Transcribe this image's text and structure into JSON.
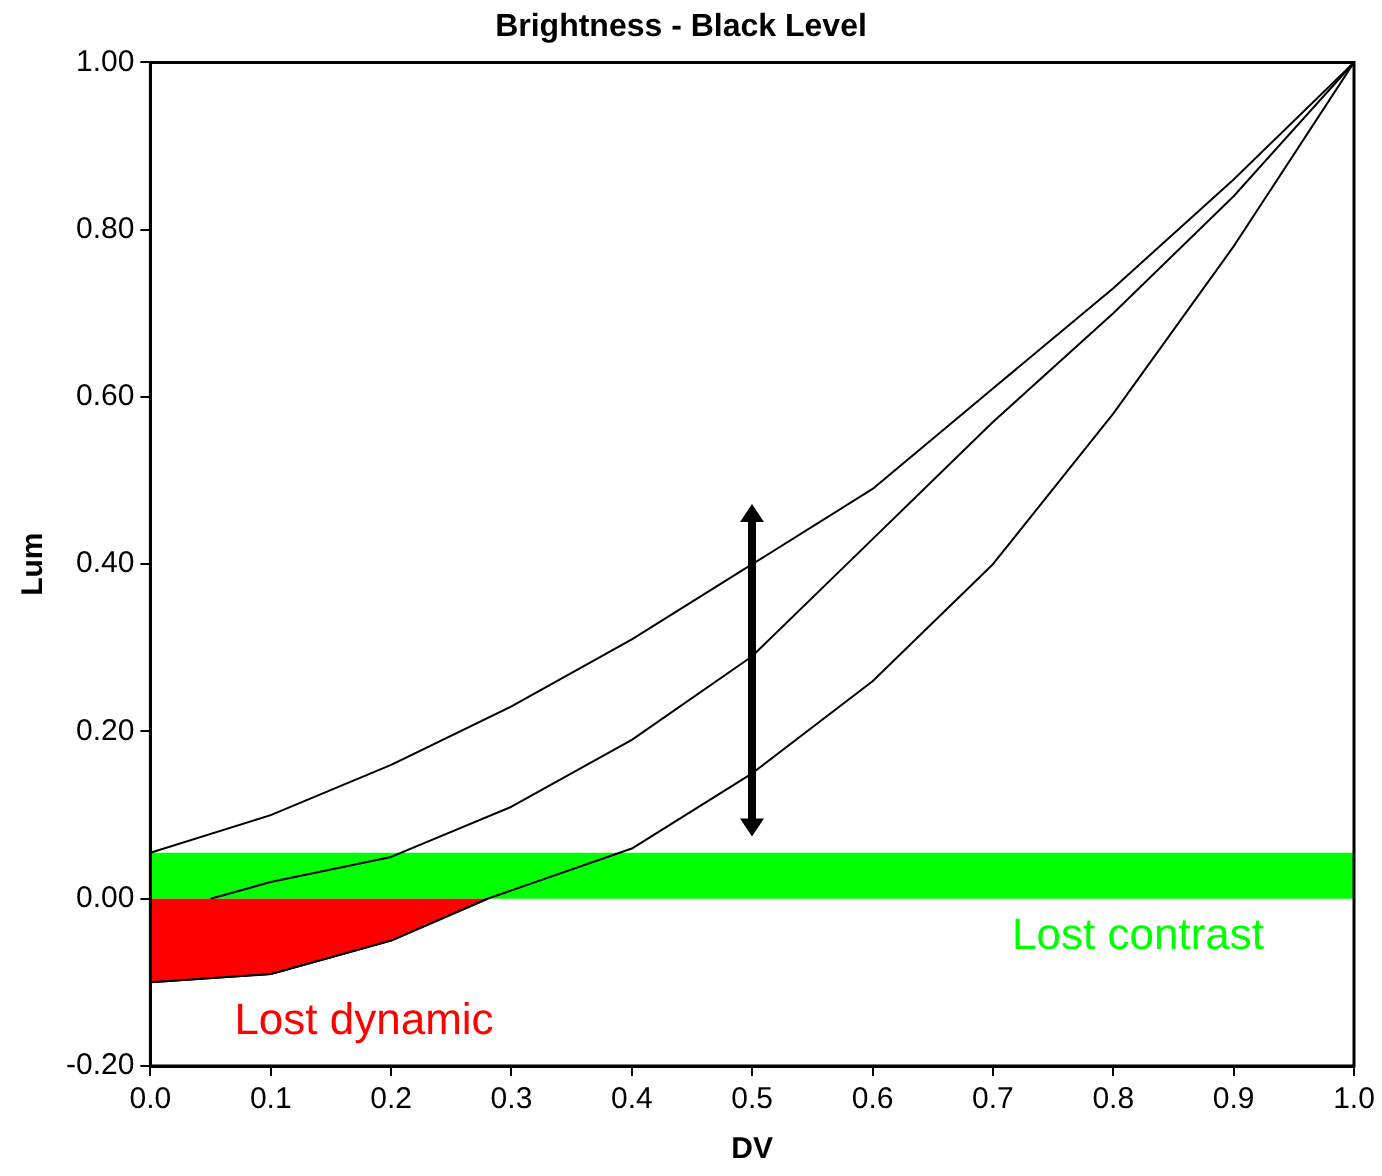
{
  "chart_data": {
    "type": "line",
    "title": "Brightness - Black Level",
    "xlabel": "DV",
    "ylabel": "Lum",
    "xlim": [
      0,
      1
    ],
    "ylim": [
      -0.2,
      1
    ],
    "xticks": [
      {
        "value": 0,
        "label": "0.0"
      },
      {
        "value": 0.1,
        "label": "0.1"
      },
      {
        "value": 0.2,
        "label": "0.2"
      },
      {
        "value": 0.3,
        "label": "0.3"
      },
      {
        "value": 0.4,
        "label": "0.4"
      },
      {
        "value": 0.5,
        "label": "0.5"
      },
      {
        "value": 0.6,
        "label": "0.6"
      },
      {
        "value": 0.7,
        "label": "0.7"
      },
      {
        "value": 0.8,
        "label": "0.8"
      },
      {
        "value": 0.9,
        "label": "0.9"
      },
      {
        "value": 1,
        "label": "1.0"
      }
    ],
    "yticks": [
      {
        "value": -0.2,
        "label": "-0.20"
      },
      {
        "value": 0,
        "label": "0.00"
      },
      {
        "value": 0.2,
        "label": "0.20"
      },
      {
        "value": 0.4,
        "label": "0.40"
      },
      {
        "value": 0.6,
        "label": "0.60"
      },
      {
        "value": 0.8,
        "label": "0.80"
      },
      {
        "value": 1,
        "label": "1.00"
      }
    ],
    "series": [
      {
        "type": "area",
        "color": "#ff0000",
        "x": [
          0,
          0.1,
          0.2,
          0.28
        ],
        "values": [
          -0.1,
          -0.09,
          -0.05,
          0
        ]
      },
      {
        "color": "#000000",
        "x": [
          0,
          0.1,
          0.2,
          0.3,
          0.4,
          0.5,
          0.6,
          0.7,
          0.8,
          0.9,
          1
        ],
        "values": [
          0.055,
          0.1,
          0.16,
          0.23,
          0.31,
          0.4,
          0.49,
          0.61,
          0.73,
          0.86,
          1
        ]
      },
      {
        "color": "#000000",
        "x": [
          0.05,
          0.1,
          0.2,
          0.3,
          0.4,
          0.5,
          0.6,
          0.7,
          0.8,
          0.9,
          1
        ],
        "values": [
          0,
          0.02,
          0.05,
          0.11,
          0.19,
          0.29,
          0.43,
          0.57,
          0.7,
          0.84,
          1
        ]
      },
      {
        "color": "#000000",
        "x": [
          0,
          0.1,
          0.2,
          0.28,
          0.3,
          0.4,
          0.5,
          0.6,
          0.7,
          0.8,
          0.9,
          1
        ],
        "values": [
          -0.1,
          -0.09,
          -0.05,
          0,
          0.01,
          0.06,
          0.15,
          0.26,
          0.4,
          0.58,
          0.78,
          1
        ]
      }
    ],
    "bands": [
      {
        "axis": "y",
        "from": 0,
        "to": 0.055,
        "label": "Lost contrast",
        "color": "#00ff00"
      }
    ],
    "annotations": [
      "Lost dynamic"
    ],
    "grid": false,
    "legend": false,
    "marker": "none",
    "line_style": "solid"
  }
}
